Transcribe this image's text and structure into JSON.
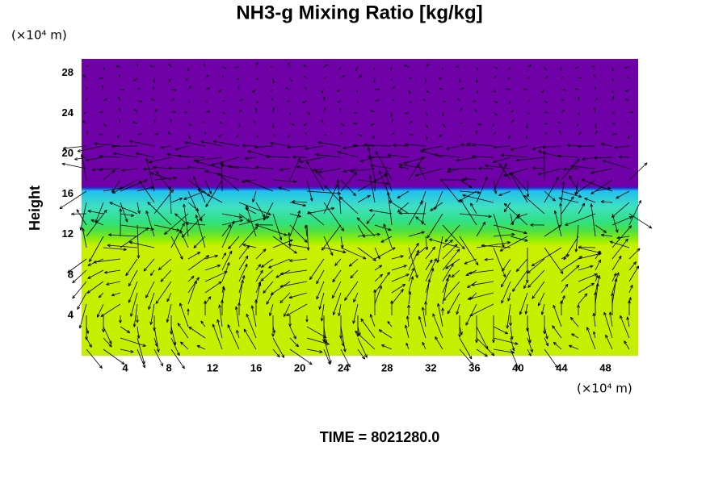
{
  "chart_data": {
    "type": "field",
    "title": "NH3-g Mixing Ratio [kg/kg]",
    "ylabel": "Height",
    "y_unit": "(×10⁴ m)",
    "x_unit": "(×10⁴ m)",
    "footer": "TIME = 8021280.0",
    "xlim": [
      0,
      51
    ],
    "xticks": [
      4,
      8,
      12,
      16,
      20,
      24,
      28,
      32,
      36,
      40,
      44,
      48
    ],
    "ylim": [
      0,
      29.4
    ],
    "yticks": [
      4,
      8,
      12,
      16,
      20,
      24,
      28
    ]
  }
}
